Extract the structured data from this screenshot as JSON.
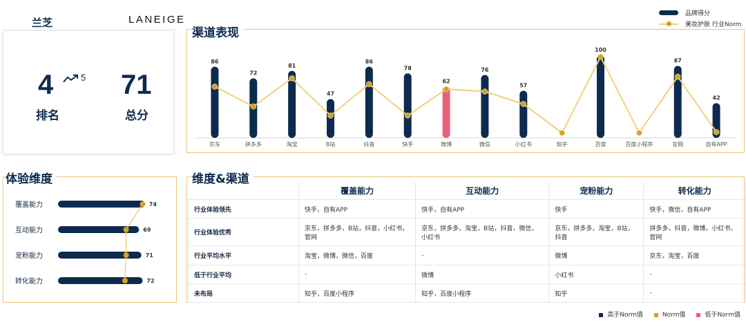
{
  "brand": {
    "name_cn": "兰芝",
    "name_en": "LANEIGE"
  },
  "rank_card": {
    "rank": "4",
    "prev_rank": "5",
    "rank_label": "排名",
    "score": "71",
    "score_label": "总分"
  },
  "sections": {
    "channel": "渠道表现",
    "experience": "体验维度",
    "matrix": "维度&渠道"
  },
  "colors": {
    "navy": "#0d2b4f",
    "gold_line": "#f3cf7a",
    "gold_dot": "#d9a21e",
    "below": "#e8607a",
    "frame": "#e8c76a"
  },
  "chart_data": [
    {
      "type": "bar",
      "categories": [
        "京东",
        "拼多多",
        "淘宝",
        "B站",
        "抖音",
        "快手",
        "微博",
        "微信",
        "小红书",
        "知乎",
        "百度",
        "百度小程序",
        "官网",
        "自有APP"
      ],
      "series": [
        {
          "name": "品牌得分",
          "values": [
            86,
            72,
            81,
            47,
            86,
            78,
            62,
            76,
            57,
            null,
            100,
            null,
            87,
            42
          ]
        },
        {
          "name": "美妆护肤 行业Norm",
          "values": [
            62,
            38,
            72,
            27,
            65,
            27,
            59,
            56,
            41,
            6,
            98,
            6,
            74,
            7
          ]
        }
      ],
      "bar_status": [
        "above",
        "above",
        "above",
        "above",
        "above",
        "above",
        "below",
        "above",
        "above",
        "none",
        "above",
        "none",
        "above",
        "above"
      ],
      "ylim": [
        0,
        100
      ]
    },
    {
      "type": "bar",
      "orientation": "horizontal",
      "categories": [
        "覆盖能力",
        "互动能力",
        "宠粉能力",
        "转化能力"
      ],
      "values": [
        74,
        69,
        71,
        72
      ],
      "norm": [
        72,
        58,
        58,
        57
      ],
      "xlim": [
        0,
        80
      ]
    }
  ],
  "matrix": {
    "columns": [
      "覆盖能力",
      "互动能力",
      "宠粉能力",
      "转化能力"
    ],
    "rows": [
      {
        "label": "行业体验领先",
        "cells": [
          "快手，自有APP",
          "快手，自有APP",
          "快手",
          "快手，微信，自有APP"
        ]
      },
      {
        "label": "行业体验优秀",
        "cells": [
          "京东，拼多多，B站，抖音，小红书，官网",
          "京东，拼多多，淘宝，B站，抖音，微信，小红书",
          "京东，拼多多，淘宝，B站，抖音",
          "拼多多，抖音，微博，小红书，官网"
        ]
      },
      {
        "label": "行业平均水平",
        "cells": [
          "淘宝，微博，微信，百度",
          "-",
          "微博",
          "京东，淘宝，百度"
        ]
      },
      {
        "label": "低于行业平均",
        "cells": [
          "-",
          "微博",
          "小红书",
          "-"
        ]
      },
      {
        "label": "未布局",
        "cells": [
          "知乎，百度小程序",
          "知乎，百度小程序",
          "知乎",
          "-"
        ]
      }
    ]
  },
  "bottom_legend": {
    "above": "高于Norm值",
    "norm": "Norm值",
    "below": "低于Norm值"
  }
}
